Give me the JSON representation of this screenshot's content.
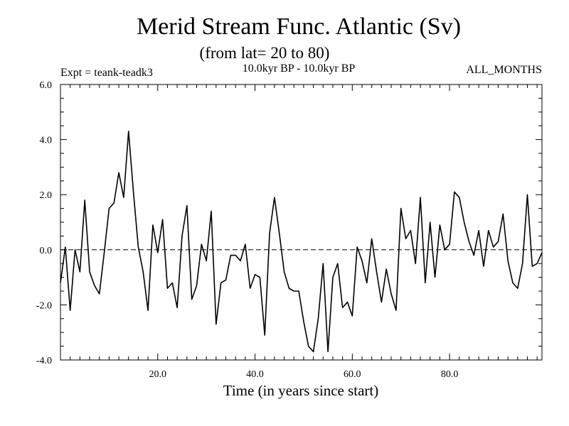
{
  "chart_data": {
    "type": "line",
    "title": "Merid Stream Func. Atlantic (Sv)",
    "subtitle": "(from lat= 20 to 80)",
    "left_label": "Expt = teank-teadk3",
    "center_label": "10.0kyr BP - 10.0kyr BP",
    "right_label": "ALL_MONTHS",
    "xlabel": "Time (in years since start)",
    "ylabel": "",
    "xlim": [
      0,
      99
    ],
    "ylim": [
      -4.0,
      6.0
    ],
    "x_ticks": [
      20,
      40,
      60,
      80
    ],
    "x_tick_labels": [
      "20.0",
      "40.0",
      "60.0",
      "80.0"
    ],
    "y_ticks": [
      -4,
      -2,
      0,
      2,
      4,
      6
    ],
    "y_tick_labels": [
      "-4.0",
      "-2.0",
      "0.0",
      "2.0",
      "4.0",
      "6.0"
    ],
    "zero_line": "dashed",
    "series": [
      {
        "x": [
          0,
          1,
          2,
          3,
          4,
          5,
          6,
          7,
          8,
          9,
          10,
          11,
          12,
          13,
          14,
          15,
          16,
          17,
          18,
          19,
          20,
          21,
          22,
          23,
          24,
          25,
          26,
          27,
          28,
          29,
          30,
          31,
          32,
          33,
          34,
          35,
          36,
          37,
          38,
          39,
          40,
          41,
          42,
          43,
          44,
          45,
          46,
          47,
          48,
          49,
          50,
          51,
          52,
          53,
          54,
          55,
          56,
          57,
          58,
          59,
          60,
          61,
          62,
          63,
          64,
          65,
          66,
          67,
          68,
          69,
          70,
          71,
          72,
          73,
          74,
          75,
          76,
          77,
          78,
          79,
          80,
          81,
          82,
          83,
          84,
          85,
          86,
          87,
          88,
          89,
          90,
          91,
          92,
          93,
          94,
          95,
          96,
          97,
          98,
          99
        ],
        "values": [
          -1.2,
          0.1,
          -2.2,
          0.0,
          -0.8,
          1.8,
          -0.8,
          -1.3,
          -1.6,
          -0.1,
          1.5,
          1.7,
          2.8,
          1.9,
          4.3,
          2.1,
          0.1,
          -0.8,
          -2.2,
          0.9,
          -0.1,
          1.1,
          -1.4,
          -1.2,
          -2.1,
          0.5,
          1.6,
          -1.8,
          -1.3,
          0.2,
          -0.4,
          1.4,
          -2.7,
          -1.2,
          -1.1,
          -0.2,
          -0.2,
          -0.4,
          0.2,
          -1.4,
          -0.9,
          -1.0,
          -3.1,
          0.6,
          1.9,
          0.6,
          -0.8,
          -1.4,
          -1.5,
          -1.5,
          -2.6,
          -3.5,
          -3.7,
          -2.5,
          -0.5,
          -3.7,
          -1.0,
          -0.5,
          -2.1,
          -1.9,
          -2.4,
          0.1,
          -0.4,
          -1.2,
          0.4,
          -0.8,
          -1.9,
          -0.7,
          -1.6,
          -2.2,
          1.5,
          0.4,
          0.7,
          -0.5,
          1.9,
          -1.2,
          1.0,
          -1.0,
          0.9,
          0.0,
          0.2,
          2.1,
          1.9,
          1.0,
          0.3,
          -0.2,
          0.7,
          -0.6,
          0.7,
          0.1,
          0.3,
          1.3,
          -0.4,
          -1.2,
          -1.4,
          -0.5,
          2.0,
          -0.6,
          -0.5,
          -0.1
        ]
      }
    ]
  }
}
